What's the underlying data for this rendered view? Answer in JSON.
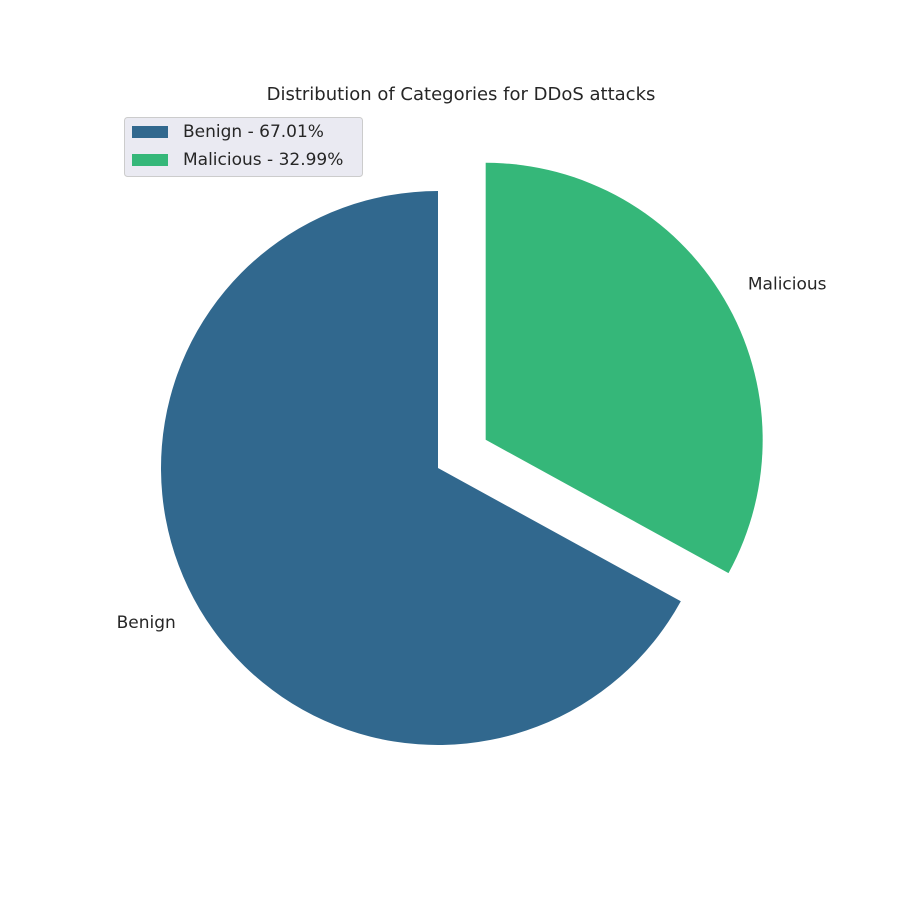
{
  "chart_data": {
    "type": "pie",
    "title": "Distribution of Categories for DDoS attacks",
    "slices": [
      {
        "label": "Benign",
        "value": 67.01,
        "legend_label": "Benign - 67.01%",
        "color": "#31688e",
        "explode": 0.0
      },
      {
        "label": "Malicious",
        "value": 32.99,
        "legend_label": "Malicious - 32.99%",
        "color": "#35b779",
        "explode": 0.2
      }
    ],
    "start_angle_deg": 90,
    "direction": "counterclockwise",
    "legend_position": "upper-left"
  }
}
